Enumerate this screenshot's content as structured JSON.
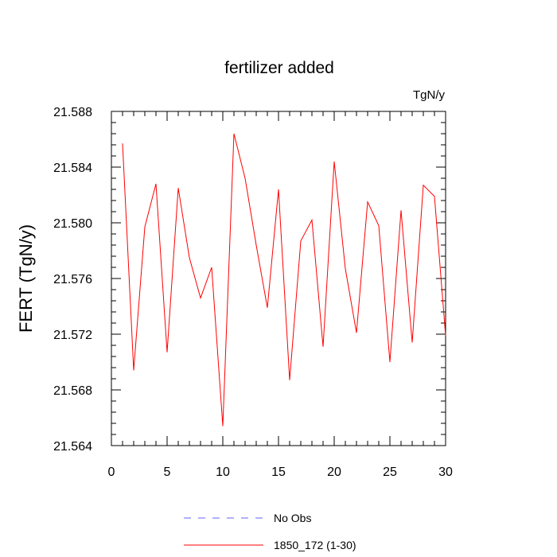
{
  "chart_data": {
    "type": "line",
    "title": "fertilizer added",
    "units_label": "TgN/y",
    "ylabel": "FERT  (TgN/y)",
    "xlabel": "",
    "xlim": [
      0,
      30
    ],
    "ylim": [
      21.564,
      21.588
    ],
    "xticks": [
      0,
      5,
      10,
      15,
      20,
      25,
      30
    ],
    "yticks": [
      21.564,
      21.568,
      21.572,
      21.576,
      21.58,
      21.584,
      21.588
    ],
    "ytick_labels": [
      "21.564",
      "21.568",
      "21.572",
      "21.576",
      "21.580",
      "21.584",
      "21.588"
    ],
    "grid": false,
    "legend_position": "bottom",
    "series": [
      {
        "name": "No Obs",
        "color": "#6666ff",
        "dashed": true,
        "x": [],
        "values": []
      },
      {
        "name": "1850_172 (1-30)",
        "color": "#ff0000",
        "dashed": false,
        "x": [
          1,
          2,
          3,
          4,
          5,
          6,
          7,
          8,
          9,
          10,
          11,
          12,
          13,
          14,
          15,
          16,
          17,
          18,
          19,
          20,
          21,
          22,
          23,
          24,
          25,
          26,
          27,
          28,
          29,
          30
        ],
        "values": [
          21.5857,
          21.5694,
          21.5797,
          21.5828,
          21.5707,
          21.5825,
          21.5775,
          21.5746,
          21.5768,
          21.5654,
          21.5864,
          21.5832,
          21.5784,
          21.5739,
          21.5824,
          21.5687,
          21.5787,
          21.5802,
          21.5711,
          21.5844,
          21.5767,
          21.5721,
          21.5815,
          21.5798,
          21.57,
          21.5809,
          21.5714,
          21.5827,
          21.5819,
          21.5719
        ]
      }
    ]
  }
}
